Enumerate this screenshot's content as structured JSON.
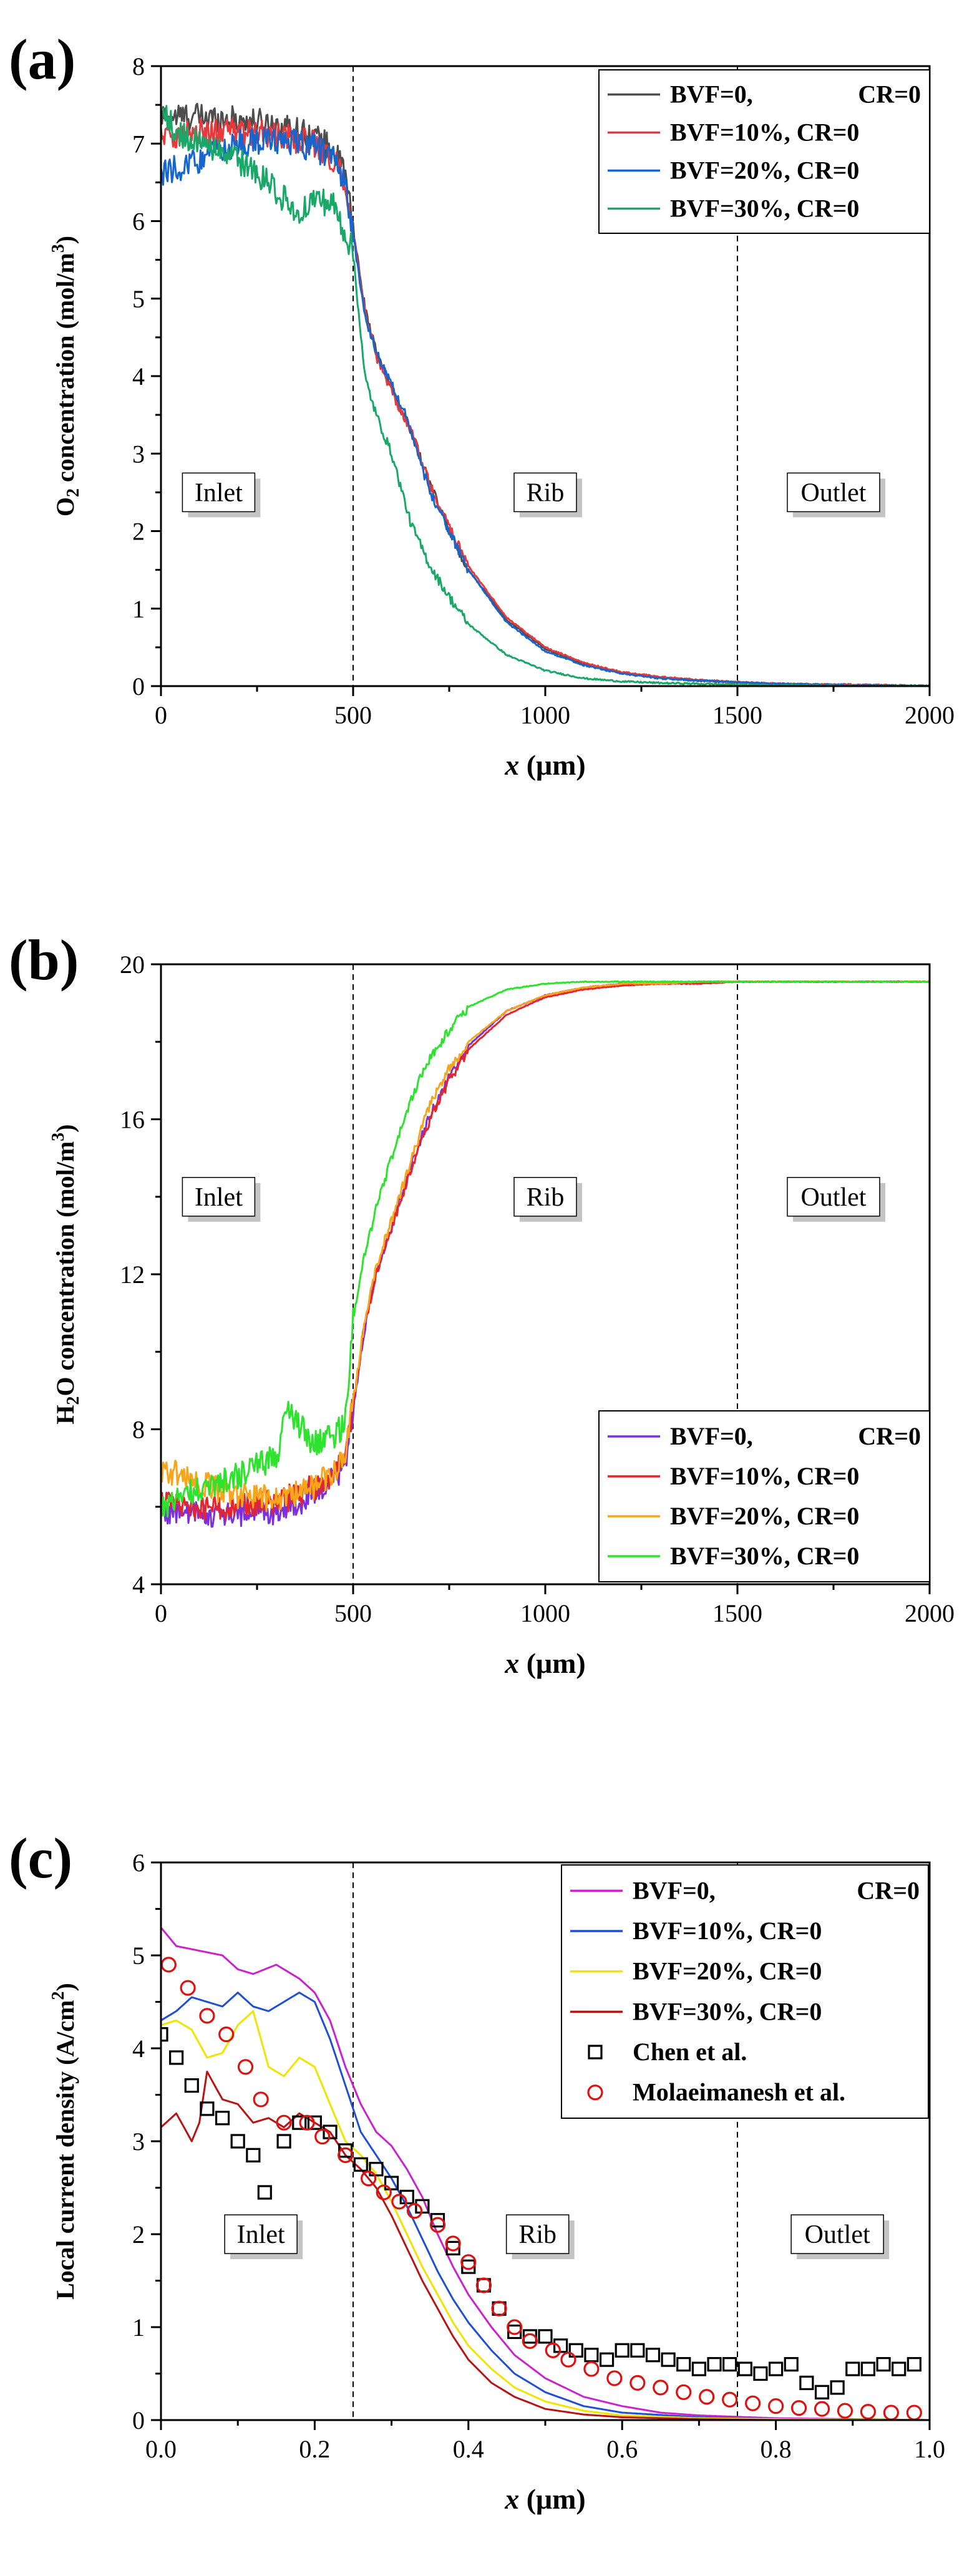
{
  "chart_data": [
    {
      "type": "line",
      "panel_label": "(a)",
      "title": "",
      "xlabel": "x (μm)",
      "ylabel": "O2 concentration (mol/m3)",
      "xlim": [
        0,
        2000
      ],
      "ylim": [
        0,
        8
      ],
      "xticks": [
        0,
        500,
        1000,
        1500,
        2000
      ],
      "yticks": [
        0,
        1,
        2,
        3,
        4,
        5,
        6,
        7,
        8
      ],
      "vlines": [
        500,
        1500
      ],
      "legend_position": "top-right",
      "regions": [
        {
          "label": "Inlet",
          "x": 150,
          "y": 2.5
        },
        {
          "label": "Rib",
          "x": 1000,
          "y": 2.5
        },
        {
          "label": "Outlet",
          "x": 1750,
          "y": 2.5
        }
      ],
      "series": [
        {
          "name": "BVF=0,      CR=0",
          "color": "#4d4d4d",
          "x": [
            0,
            100,
            200,
            300,
            400,
            450,
            480,
            500,
            530,
            560,
            600,
            650,
            700,
            750,
            800,
            900,
            1000,
            1100,
            1200,
            1300,
            1400,
            1500,
            1600,
            1700,
            1800,
            1900,
            2000
          ],
          "y": [
            7.35,
            7.35,
            7.3,
            7.25,
            7.1,
            6.9,
            6.6,
            5.9,
            4.9,
            4.3,
            3.85,
            3.3,
            2.6,
            2.0,
            1.5,
            0.85,
            0.48,
            0.28,
            0.17,
            0.11,
            0.07,
            0.05,
            0.03,
            0.02,
            0.01,
            0.01,
            0.0
          ]
        },
        {
          "name": "BVF=10%, CR=0",
          "color": "#e8383b",
          "x": [
            0,
            100,
            200,
            300,
            400,
            450,
            480,
            500,
            530,
            560,
            600,
            650,
            700,
            750,
            800,
            900,
            1000,
            1100,
            1200,
            1300,
            1400,
            1500,
            1600,
            1700,
            1800,
            1900,
            2000
          ],
          "y": [
            7.1,
            7.15,
            7.15,
            7.1,
            7.0,
            6.8,
            6.5,
            5.85,
            4.85,
            4.25,
            3.8,
            3.3,
            2.6,
            2.05,
            1.55,
            0.88,
            0.5,
            0.3,
            0.18,
            0.12,
            0.08,
            0.05,
            0.03,
            0.02,
            0.02,
            0.01,
            0.0
          ]
        },
        {
          "name": "BVF=20%, CR=0",
          "color": "#1766d0",
          "x": [
            0,
            100,
            200,
            300,
            400,
            450,
            480,
            500,
            530,
            560,
            600,
            650,
            680,
            700,
            750,
            800,
            900,
            1000,
            1100,
            1200,
            1300,
            1400,
            1500,
            1600,
            1700,
            1800,
            1900,
            2000
          ],
          "y": [
            6.6,
            6.8,
            7.0,
            7.05,
            6.95,
            6.8,
            6.5,
            5.8,
            4.8,
            4.3,
            3.9,
            3.35,
            2.8,
            2.5,
            2.0,
            1.5,
            0.82,
            0.45,
            0.27,
            0.16,
            0.1,
            0.07,
            0.05,
            0.03,
            0.02,
            0.01,
            0.01,
            0.0
          ]
        },
        {
          "name": "BVF=30%, CR=0",
          "color": "#1aa869",
          "x": [
            0,
            50,
            100,
            200,
            300,
            350,
            400,
            450,
            500,
            530,
            560,
            600,
            650,
            700,
            750,
            800,
            900,
            1000,
            1100,
            1200,
            1300,
            1400,
            1500,
            1600,
            1700,
            1800,
            1900,
            2000
          ],
          "y": [
            7.4,
            7.1,
            7.0,
            6.8,
            6.4,
            6.1,
            6.3,
            6.2,
            5.6,
            4.0,
            3.5,
            3.0,
            2.1,
            1.55,
            1.15,
            0.8,
            0.4,
            0.2,
            0.1,
            0.06,
            0.04,
            0.03,
            0.02,
            0.01,
            0.01,
            0.0,
            0.0,
            0.0
          ]
        }
      ]
    },
    {
      "type": "line",
      "panel_label": "(b)",
      "title": "",
      "xlabel": "x (μm)",
      "ylabel": "H2O concentration (mol/m3)",
      "xlim": [
        0,
        2000
      ],
      "ylim": [
        4,
        20
      ],
      "xticks": [
        0,
        500,
        1000,
        1500,
        2000
      ],
      "yticks": [
        4,
        8,
        12,
        16,
        20
      ],
      "vlines": [
        500,
        1500
      ],
      "legend_position": "bottom-right",
      "regions": [
        {
          "label": "Inlet",
          "x": 150,
          "y": 14.0
        },
        {
          "label": "Rib",
          "x": 1000,
          "y": 14.0
        },
        {
          "label": "Outlet",
          "x": 1750,
          "y": 14.0
        }
      ],
      "series": [
        {
          "name": "BVF=0,      CR=0",
          "color": "#7b2fe0",
          "x": [
            0,
            100,
            200,
            300,
            400,
            450,
            480,
            500,
            530,
            560,
            600,
            650,
            700,
            750,
            800,
            900,
            1000,
            1100,
            1200,
            1300,
            1400,
            1500,
            1600,
            1700,
            1800,
            1900,
            2000
          ],
          "y": [
            5.9,
            5.8,
            5.8,
            5.9,
            6.3,
            6.7,
            7.2,
            8.5,
            10.6,
            12.0,
            13.2,
            14.8,
            16.1,
            17.1,
            17.9,
            18.8,
            19.2,
            19.4,
            19.5,
            19.5,
            19.55,
            19.55,
            19.55,
            19.55,
            19.55,
            19.55,
            19.55
          ]
        },
        {
          "name": "BVF=10%, CR=0",
          "color": "#e5242b",
          "x": [
            0,
            100,
            200,
            300,
            400,
            450,
            480,
            500,
            530,
            560,
            600,
            650,
            700,
            750,
            800,
            900,
            1000,
            1100,
            1200,
            1300,
            1400,
            1500,
            1600,
            1700,
            1800,
            1900,
            2000
          ],
          "y": [
            6.1,
            6.0,
            6.0,
            6.1,
            6.5,
            6.9,
            7.4,
            8.6,
            10.7,
            12.0,
            13.2,
            14.7,
            16.0,
            17.0,
            17.8,
            18.7,
            19.15,
            19.35,
            19.45,
            19.5,
            19.5,
            19.55,
            19.55,
            19.55,
            19.55,
            19.55,
            19.55
          ]
        },
        {
          "name": "BVF=20%, CR=0",
          "color": "#f7a51a",
          "x": [
            0,
            100,
            200,
            300,
            400,
            450,
            480,
            500,
            530,
            560,
            600,
            650,
            700,
            750,
            800,
            900,
            1000,
            1100,
            1200,
            1300,
            1400,
            1500,
            1600,
            1700,
            1800,
            1900,
            2000
          ],
          "y": [
            7.0,
            6.6,
            6.3,
            6.2,
            6.5,
            6.9,
            7.4,
            8.7,
            10.8,
            12.2,
            13.4,
            14.9,
            16.4,
            17.3,
            18.0,
            18.8,
            19.2,
            19.4,
            19.5,
            19.5,
            19.55,
            19.55,
            19.55,
            19.55,
            19.55,
            19.55,
            19.55
          ]
        },
        {
          "name": "BVF=30%, CR=0",
          "color": "#2ee32e",
          "x": [
            0,
            100,
            200,
            300,
            330,
            400,
            450,
            480,
            500,
            530,
            560,
            600,
            650,
            700,
            750,
            800,
            900,
            1000,
            1100,
            1200,
            1300,
            1400,
            1500,
            1600,
            1700,
            1800,
            1900,
            2000
          ],
          "y": [
            6.0,
            6.5,
            6.8,
            7.3,
            8.5,
            7.6,
            7.8,
            8.2,
            10.8,
            12.5,
            13.7,
            15.0,
            16.5,
            17.6,
            18.3,
            18.9,
            19.35,
            19.5,
            19.55,
            19.55,
            19.55,
            19.55,
            19.55,
            19.55,
            19.55,
            19.55,
            19.55,
            19.55
          ]
        }
      ]
    },
    {
      "type": "line",
      "panel_label": "(c)",
      "title": "",
      "xlabel": "x (μm)",
      "ylabel": "Local current density (A/cm2)",
      "xlim": [
        0.0,
        1.0
      ],
      "ylim": [
        0,
        6
      ],
      "xticks": [
        0.0,
        0.2,
        0.4,
        0.6,
        0.8,
        1.0
      ],
      "yticks": [
        0,
        1,
        2,
        3,
        4,
        5,
        6
      ],
      "vlines": [
        0.25,
        0.75
      ],
      "legend_position": "top-right",
      "regions": [
        {
          "label": "Inlet",
          "x": 0.13,
          "y": 2.0
        },
        {
          "label": "Rib",
          "x": 0.49,
          "y": 2.0
        },
        {
          "label": "Outlet",
          "x": 0.88,
          "y": 2.0
        }
      ],
      "series": [
        {
          "name": "BVF=0,      CR=0",
          "color": "#cc22cc",
          "x": [
            0.0,
            0.02,
            0.05,
            0.08,
            0.1,
            0.12,
            0.15,
            0.18,
            0.2,
            0.22,
            0.24,
            0.26,
            0.28,
            0.3,
            0.32,
            0.34,
            0.36,
            0.38,
            0.4,
            0.43,
            0.46,
            0.5,
            0.55,
            0.6,
            0.65,
            0.7,
            0.8,
            0.9,
            1.0
          ],
          "y": [
            5.3,
            5.1,
            5.05,
            5.0,
            4.85,
            4.8,
            4.9,
            4.75,
            4.6,
            4.3,
            3.8,
            3.4,
            3.1,
            2.95,
            2.7,
            2.4,
            2.0,
            1.65,
            1.35,
            1.0,
            0.7,
            0.45,
            0.25,
            0.15,
            0.08,
            0.05,
            0.02,
            0.01,
            0.0
          ]
        },
        {
          "name": "BVF=10%, CR=0",
          "color": "#1f4fd8",
          "x": [
            0.0,
            0.02,
            0.04,
            0.06,
            0.08,
            0.1,
            0.12,
            0.14,
            0.16,
            0.18,
            0.2,
            0.22,
            0.24,
            0.26,
            0.28,
            0.3,
            0.32,
            0.34,
            0.36,
            0.38,
            0.4,
            0.43,
            0.46,
            0.5,
            0.55,
            0.6,
            0.7,
            0.8,
            1.0
          ],
          "y": [
            4.3,
            4.4,
            4.55,
            4.5,
            4.45,
            4.6,
            4.45,
            4.4,
            4.5,
            4.6,
            4.5,
            4.1,
            3.6,
            3.1,
            2.85,
            2.6,
            2.3,
            1.95,
            1.6,
            1.3,
            1.05,
            0.75,
            0.5,
            0.3,
            0.15,
            0.08,
            0.03,
            0.01,
            0.0
          ]
        },
        {
          "name": "BVF=20%, CR=0",
          "color": "#f0e400",
          "x": [
            0.0,
            0.02,
            0.04,
            0.06,
            0.08,
            0.1,
            0.12,
            0.14,
            0.16,
            0.18,
            0.2,
            0.22,
            0.24,
            0.26,
            0.28,
            0.3,
            0.32,
            0.34,
            0.36,
            0.38,
            0.4,
            0.43,
            0.46,
            0.5,
            0.55,
            0.6,
            0.7,
            0.8,
            1.0
          ],
          "y": [
            4.25,
            4.3,
            4.2,
            3.9,
            3.95,
            4.25,
            4.4,
            3.8,
            3.7,
            3.9,
            3.8,
            3.4,
            3.0,
            2.85,
            2.65,
            2.35,
            2.0,
            1.65,
            1.35,
            1.05,
            0.8,
            0.55,
            0.35,
            0.2,
            0.1,
            0.05,
            0.02,
            0.01,
            0.0
          ]
        },
        {
          "name": "BVF=30%, CR=0",
          "color": "#b81414",
          "x": [
            0.0,
            0.02,
            0.04,
            0.05,
            0.06,
            0.08,
            0.1,
            0.12,
            0.14,
            0.16,
            0.18,
            0.2,
            0.22,
            0.24,
            0.26,
            0.28,
            0.3,
            0.32,
            0.34,
            0.36,
            0.38,
            0.4,
            0.43,
            0.46,
            0.5,
            0.55,
            0.6,
            0.7,
            0.8,
            1.0
          ],
          "y": [
            3.15,
            3.3,
            3.0,
            3.2,
            3.75,
            3.45,
            3.4,
            3.2,
            3.25,
            3.15,
            3.3,
            3.2,
            3.1,
            2.85,
            2.7,
            2.5,
            2.2,
            1.85,
            1.5,
            1.2,
            0.9,
            0.65,
            0.4,
            0.25,
            0.12,
            0.06,
            0.03,
            0.01,
            0.0,
            0.0
          ]
        },
        {
          "name": "Chen et al.",
          "marker": "square",
          "color": "#000000",
          "x": [
            0.0,
            0.02,
            0.04,
            0.06,
            0.08,
            0.1,
            0.12,
            0.135,
            0.16,
            0.18,
            0.2,
            0.22,
            0.24,
            0.26,
            0.28,
            0.3,
            0.32,
            0.34,
            0.36,
            0.38,
            0.4,
            0.42,
            0.44,
            0.46,
            0.48,
            0.5,
            0.52,
            0.54,
            0.56,
            0.58,
            0.6,
            0.62,
            0.64,
            0.66,
            0.68,
            0.7,
            0.72,
            0.74,
            0.76,
            0.78,
            0.8,
            0.82,
            0.84,
            0.86,
            0.88,
            0.9,
            0.92,
            0.94,
            0.96,
            0.98
          ],
          "y": [
            4.15,
            3.9,
            3.6,
            3.35,
            3.25,
            3.0,
            2.85,
            2.45,
            3.0,
            3.2,
            3.2,
            3.1,
            2.9,
            2.75,
            2.7,
            2.55,
            2.4,
            2.3,
            2.15,
            1.85,
            1.65,
            1.45,
            1.2,
            0.95,
            0.9,
            0.9,
            0.8,
            0.75,
            0.7,
            0.65,
            0.75,
            0.75,
            0.7,
            0.65,
            0.6,
            0.55,
            0.6,
            0.6,
            0.55,
            0.5,
            0.55,
            0.6,
            0.4,
            0.3,
            0.35,
            0.55,
            0.55,
            0.6,
            0.55,
            0.6
          ]
        },
        {
          "name": "Molaeimanesh et al.",
          "marker": "circle",
          "color": "#e01010",
          "x": [
            0.01,
            0.035,
            0.06,
            0.085,
            0.11,
            0.13,
            0.16,
            0.19,
            0.21,
            0.24,
            0.27,
            0.29,
            0.31,
            0.33,
            0.36,
            0.38,
            0.4,
            0.42,
            0.44,
            0.46,
            0.48,
            0.51,
            0.53,
            0.56,
            0.59,
            0.62,
            0.65,
            0.68,
            0.71,
            0.74,
            0.77,
            0.8,
            0.83,
            0.86,
            0.89,
            0.92,
            0.95,
            0.98
          ],
          "y": [
            4.9,
            4.65,
            4.35,
            4.15,
            3.8,
            3.45,
            3.2,
            3.2,
            3.05,
            2.85,
            2.6,
            2.45,
            2.35,
            2.25,
            2.1,
            1.9,
            1.7,
            1.45,
            1.2,
            1.0,
            0.85,
            0.75,
            0.65,
            0.55,
            0.45,
            0.4,
            0.35,
            0.3,
            0.25,
            0.22,
            0.18,
            0.15,
            0.13,
            0.12,
            0.1,
            0.09,
            0.08,
            0.08
          ]
        }
      ]
    }
  ]
}
